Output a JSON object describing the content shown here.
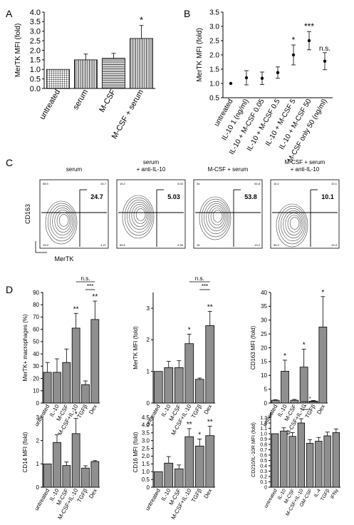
{
  "panel_labels": {
    "A": "A",
    "B": "B",
    "C": "C",
    "D": "D"
  },
  "chart_data": [
    {
      "id": "A",
      "type": "bar",
      "ylabel": "MerTK MFI (fold)",
      "ylim": [
        0,
        4
      ],
      "yticks": [
        "0.0",
        "0.5",
        "1.0",
        "1.5",
        "2.0",
        "2.5",
        "3.0",
        "3.5",
        "4.0"
      ],
      "categories": [
        "untreated",
        "serum",
        "M-CSF",
        "M-CSF + serum"
      ],
      "values": [
        1.0,
        1.5,
        1.58,
        2.62
      ],
      "errors": [
        0.0,
        0.3,
        0.26,
        0.68
      ],
      "annotations": [
        "",
        "",
        "",
        "*"
      ],
      "fill_patterns": [
        "grid",
        "vertical",
        "horizontal",
        "vertical"
      ]
    },
    {
      "id": "B",
      "type": "scatter",
      "ylabel": "MerTK MFI (fold)",
      "ylim": [
        0.5,
        3.5
      ],
      "yticks": [
        "0.5",
        "1.0",
        "1.5",
        "2.0",
        "2.5",
        "3.0",
        "3.5"
      ],
      "categories": [
        "untreated",
        "IL-10 1 (ng/ml)",
        "IL-10 + M-CSF 0.05",
        "IL-10 + M-CSF 0.5",
        "IL-10 + M-CSF 5",
        "IL-10 + M-CSF 50",
        "M-CSF only 50 (ng/ml)"
      ],
      "values": [
        1.0,
        1.2,
        1.18,
        1.38,
        2.0,
        2.5,
        1.78
      ],
      "errors": [
        0.0,
        0.25,
        0.22,
        0.2,
        0.35,
        0.32,
        0.3
      ],
      "annotations": [
        "",
        "",
        "",
        "",
        "*",
        "***",
        "n.s."
      ]
    },
    {
      "id": "D1",
      "type": "bar",
      "ylabel": "MerTK+ macrophages (%)",
      "ylim": [
        0,
        90
      ],
      "yticks": [
        "0",
        "10",
        "20",
        "30",
        "40",
        "50",
        "60",
        "70",
        "80",
        "90"
      ],
      "categories": [
        "untreated",
        "IL-10",
        "M-CSF",
        "M-CSF+IL-10",
        "TGFβ",
        "Dex"
      ],
      "values": [
        25,
        25,
        33,
        61,
        15,
        68
      ],
      "errors": [
        8,
        11,
        11,
        12,
        3,
        15
      ],
      "annotations": [
        "",
        "",
        "",
        "**",
        "",
        "**"
      ],
      "brackets": [
        {
          "from": 3,
          "to": 5,
          "label": "n.s."
        },
        {
          "from": 4,
          "to": 5,
          "label": "***"
        }
      ]
    },
    {
      "id": "D2",
      "type": "bar",
      "ylabel": "MerTK MFI (fold)",
      "ylim": [
        0,
        3.5
      ],
      "yticks": [
        "0",
        "1",
        "2",
        "3"
      ],
      "categories": [
        "untreated",
        "IL-10",
        "M-CSF",
        "M-CSF+IL-10",
        "TGFβ",
        "Dex"
      ],
      "values": [
        1.0,
        1.12,
        1.12,
        1.88,
        0.75,
        2.45
      ],
      "errors": [
        0.0,
        0.2,
        0.22,
        0.3,
        0.04,
        0.45
      ],
      "annotations": [
        "",
        "",
        "",
        "*",
        "",
        "**"
      ],
      "brackets": [
        {
          "from": 3,
          "to": 5,
          "label": "n.s."
        },
        {
          "from": 4,
          "to": 5,
          "label": "***"
        }
      ]
    },
    {
      "id": "D3",
      "type": "bar",
      "ylabel": "CD163 MFI (fold)",
      "ylim": [
        0,
        40
      ],
      "yticks": [
        "0",
        "5",
        "10",
        "15",
        "20",
        "25",
        "30",
        "35",
        "40"
      ],
      "categories": [
        "untreated",
        "IL-10",
        "M-CSF",
        "M-CSF+IL-10",
        "TGFβ",
        "Dex"
      ],
      "values": [
        1.0,
        11.5,
        1.0,
        13.0,
        0.7,
        27.5
      ],
      "errors": [
        0.2,
        4.0,
        0.3,
        6.5,
        0.2,
        11.0
      ],
      "annotations": [
        "",
        "*",
        "",
        "*",
        "",
        "*"
      ]
    },
    {
      "id": "D4",
      "type": "bar",
      "ylabel": "CD14 MFI (fold)",
      "ylim": [
        0,
        3
      ],
      "yticks": [
        "0",
        "1",
        "2",
        "3"
      ],
      "categories": [
        "untreated",
        "IL-10",
        "M-CSF",
        "M-CSF+IL-10",
        "TGFβ",
        "Dex"
      ],
      "values": [
        1.0,
        1.92,
        0.93,
        2.3,
        0.82,
        1.1
      ],
      "errors": [
        0.0,
        0.33,
        0.15,
        0.65,
        0.1,
        0.04
      ],
      "annotations": [
        "",
        "",
        "",
        "*",
        "",
        ""
      ]
    },
    {
      "id": "D5",
      "type": "bar",
      "ylabel": "CD16 MFI (fold)",
      "ylim": [
        0,
        4.5
      ],
      "yticks": [
        "0",
        "0.5",
        "1.0",
        "1.5",
        "2.0",
        "2.5",
        "3.0",
        "3.5",
        "4.0",
        "4.5"
      ],
      "categories": [
        "untreated",
        "IL-10",
        "M-CSF",
        "M-CSF+IL-10",
        "TGFβ",
        "Dex"
      ],
      "values": [
        1.0,
        1.55,
        1.18,
        3.25,
        2.65,
        3.32
      ],
      "errors": [
        0.0,
        0.42,
        0.25,
        0.52,
        0.45,
        0.6
      ],
      "annotations": [
        "",
        "",
        "",
        "**",
        "*",
        "**"
      ]
    },
    {
      "id": "D6",
      "type": "bar",
      "ylabel": "CD210/IL-10R MFI (fold)",
      "ylim": [
        0,
        1.4
      ],
      "yticks": [
        "0",
        "0.1",
        "0.2",
        "0.3",
        "0.4",
        "0.5",
        "0.6",
        "0.7",
        "0.8",
        "0.9",
        "1.0",
        "1.1",
        "1.2",
        "1.3"
      ],
      "categories": [
        "untreated",
        "IL-10",
        "M-CSF",
        "M-CSF+IL-10",
        "GM-CSF",
        "IL-4",
        "TGFβ",
        "IFNγ"
      ],
      "values": [
        1.0,
        1.05,
        0.95,
        1.2,
        0.82,
        0.86,
        0.96,
        1.02
      ],
      "errors": [
        0.0,
        0.06,
        0.07,
        0.08,
        0.07,
        0.07,
        0.07,
        0.07
      ],
      "annotations": [
        "",
        "",
        "",
        "",
        "",
        "",
        "",
        ""
      ],
      "brackets": [
        {
          "from": 3,
          "to": 5,
          "label": "*"
        },
        {
          "from": 3,
          "to": 4,
          "label": "*"
        }
      ]
    }
  ],
  "flow": {
    "ylabel": "CD163",
    "xlabel": "MerTK",
    "plots": [
      {
        "title": "serum",
        "value": "24.7",
        "quads": [
          "98.9",
          "24.7",
          "15.9",
          "4.47"
        ]
      },
      {
        "title": "serum\n+ anti-IL-10",
        "value": "5.03",
        "quads": [
          "19.2",
          "5.03",
          "65.6",
          "9.36"
        ]
      },
      {
        "title": "M-CSF + serum",
        "value": "53.8",
        "quads": [
          "34",
          "53.8",
          "16",
          "13.2"
        ]
      },
      {
        "title": "M-CSF + serum\n+ anti-IL-10",
        "value": "10.1",
        "quads": [
          "15.2",
          "10.1",
          "55.3",
          "19.4"
        ]
      }
    ]
  }
}
